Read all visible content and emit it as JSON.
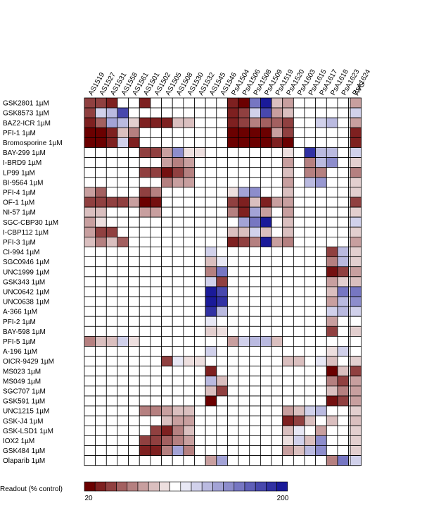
{
  "chart_data": {
    "type": "heatmap",
    "columns": [
      "AS1519",
      "AS1527",
      "AS1531",
      "AS1558",
      "AS1561",
      "AS1501",
      "AS1502",
      "AS1505",
      "AS1508",
      "AS1530",
      "AS1532",
      "AS1545",
      "AS1546",
      "PsA1504",
      "PsA1506",
      "PsA1508",
      "PsA1509",
      "PsA1519",
      "PsA1520",
      "PsA1603",
      "PsA1615",
      "PsA1617",
      "PsA1618",
      "PsA1623",
      "PsA1624"
    ],
    "summary_column": "AVG",
    "rows": [
      "GSK2801 1µM",
      "GSK8573 1µM",
      "BAZ2-ICR 1µM",
      "PFI-1 1µM",
      "Bromosporine 1µM",
      "BAY-299 1µM",
      "I-BRD9 1µM",
      "LP99 1µM",
      "BI-9564 1µM",
      "PFI-4 1µM",
      "OF-1 1µM",
      "NI-57 1µM",
      "SGC-CBP30 1µM",
      "I-CBP112 1µM",
      "PFI-3 1µM",
      "CI-994 1µM",
      "SGC0946 1µM",
      "UNC1999 1µM",
      "GSK343 1µM",
      "UNC0642 1µM",
      "UNC0638 1µM",
      "A-366 1µM",
      "PFI-2 1µM",
      "BAY-598 1µM",
      "PFI-5 1µM",
      "A-196 1µM",
      "OICR-9429 1µM",
      "MS023 1µM",
      "MS049 1µM",
      "SGC707 1µM",
      "GSK591 1µM",
      "UNC1215 1µM",
      "GSK-J4 1µM",
      "GSK-LSD1 1µM",
      "IOX2 1µM",
      "GSK484 1µM",
      "Olaparib 1µM"
    ],
    "values": [
      [
        40,
        40,
        30,
        100,
        100,
        30,
        100,
        100,
        100,
        100,
        100,
        100,
        100,
        30,
        20,
        160,
        200,
        80,
        70,
        100,
        100,
        100,
        100,
        100,
        100,
        70
      ],
      [
        40,
        120,
        130,
        180,
        100,
        100,
        100,
        100,
        100,
        100,
        100,
        100,
        100,
        30,
        40,
        120,
        180,
        70,
        80,
        100,
        100,
        100,
        100,
        100,
        100,
        120
      ],
      [
        30,
        50,
        140,
        130,
        85,
        30,
        30,
        30,
        80,
        80,
        100,
        100,
        100,
        30,
        40,
        60,
        50,
        50,
        40,
        100,
        100,
        120,
        130,
        100,
        100,
        70
      ],
      [
        20,
        20,
        30,
        80,
        60,
        100,
        100,
        100,
        100,
        100,
        100,
        100,
        100,
        20,
        20,
        20,
        20,
        70,
        40,
        100,
        100,
        100,
        100,
        100,
        100,
        30
      ],
      [
        20,
        20,
        30,
        120,
        30,
        100,
        100,
        100,
        100,
        100,
        100,
        100,
        100,
        20,
        20,
        20,
        20,
        30,
        20,
        100,
        100,
        100,
        100,
        100,
        100,
        30
      ],
      [
        100,
        100,
        100,
        100,
        100,
        40,
        40,
        70,
        150,
        90,
        90,
        100,
        100,
        100,
        100,
        100,
        100,
        100,
        90,
        100,
        190,
        130,
        130,
        100,
        100,
        120
      ],
      [
        100,
        100,
        100,
        100,
        100,
        100,
        100,
        70,
        60,
        70,
        100,
        100,
        100,
        100,
        100,
        100,
        100,
        100,
        70,
        100,
        60,
        130,
        150,
        100,
        100,
        85
      ],
      [
        100,
        100,
        100,
        100,
        100,
        40,
        40,
        25,
        40,
        60,
        100,
        100,
        100,
        100,
        100,
        100,
        100,
        100,
        80,
        100,
        60,
        60,
        100,
        100,
        100,
        60
      ],
      [
        100,
        100,
        100,
        100,
        100,
        100,
        100,
        60,
        70,
        70,
        100,
        100,
        100,
        100,
        100,
        100,
        100,
        100,
        70,
        100,
        130,
        145,
        100,
        100,
        100,
        85
      ],
      [
        70,
        50,
        100,
        100,
        100,
        40,
        60,
        100,
        100,
        100,
        100,
        100,
        100,
        90,
        140,
        150,
        100,
        100,
        80,
        100,
        100,
        100,
        100,
        100,
        100,
        85
      ],
      [
        40,
        40,
        40,
        40,
        70,
        20,
        25,
        100,
        100,
        100,
        100,
        100,
        100,
        40,
        30,
        80,
        30,
        70,
        70,
        100,
        100,
        100,
        100,
        100,
        100,
        40
      ],
      [
        80,
        80,
        100,
        100,
        100,
        70,
        70,
        100,
        100,
        100,
        100,
        100,
        100,
        60,
        30,
        140,
        70,
        100,
        70,
        100,
        100,
        100,
        100,
        100,
        100,
        85
      ],
      [
        70,
        90,
        100,
        100,
        100,
        100,
        100,
        100,
        100,
        100,
        100,
        100,
        100,
        100,
        140,
        160,
        200,
        100,
        80,
        100,
        100,
        100,
        100,
        100,
        100,
        120
      ],
      [
        70,
        40,
        40,
        100,
        100,
        100,
        100,
        100,
        100,
        100,
        100,
        100,
        100,
        80,
        80,
        120,
        80,
        100,
        80,
        100,
        100,
        100,
        100,
        100,
        100,
        85
      ],
      [
        80,
        60,
        80,
        50,
        100,
        100,
        100,
        100,
        100,
        100,
        100,
        100,
        100,
        30,
        40,
        60,
        200,
        70,
        60,
        100,
        100,
        100,
        100,
        100,
        100,
        70
      ],
      [
        100,
        100,
        100,
        100,
        100,
        100,
        100,
        100,
        100,
        100,
        100,
        120,
        100,
        100,
        100,
        100,
        100,
        100,
        100,
        100,
        100,
        100,
        40,
        130,
        100,
        85
      ],
      [
        100,
        100,
        100,
        100,
        100,
        100,
        100,
        100,
        100,
        100,
        100,
        80,
        110,
        100,
        100,
        100,
        100,
        100,
        100,
        100,
        100,
        100,
        60,
        130,
        100,
        85
      ],
      [
        100,
        100,
        100,
        100,
        100,
        100,
        100,
        100,
        100,
        100,
        100,
        60,
        160,
        100,
        100,
        100,
        100,
        100,
        100,
        100,
        100,
        100,
        25,
        40,
        100,
        70
      ],
      [
        100,
        100,
        100,
        100,
        100,
        100,
        100,
        100,
        100,
        100,
        100,
        120,
        40,
        100,
        100,
        100,
        100,
        100,
        100,
        100,
        100,
        100,
        70,
        85,
        100,
        80
      ],
      [
        100,
        100,
        100,
        100,
        100,
        100,
        100,
        100,
        100,
        100,
        100,
        200,
        180,
        100,
        100,
        100,
        100,
        100,
        100,
        100,
        100,
        100,
        80,
        160,
        100,
        160
      ],
      [
        100,
        100,
        100,
        100,
        100,
        100,
        100,
        100,
        100,
        100,
        100,
        200,
        190,
        100,
        100,
        100,
        100,
        100,
        100,
        100,
        100,
        100,
        70,
        130,
        100,
        150
      ],
      [
        100,
        100,
        100,
        100,
        100,
        100,
        100,
        100,
        100,
        100,
        100,
        190,
        130,
        100,
        100,
        100,
        100,
        100,
        100,
        100,
        100,
        100,
        120,
        130,
        100,
        120
      ],
      [
        100,
        100,
        100,
        100,
        100,
        100,
        100,
        100,
        100,
        100,
        100,
        110,
        100,
        100,
        100,
        100,
        100,
        100,
        100,
        100,
        100,
        100,
        70,
        100,
        100,
        100
      ],
      [
        100,
        100,
        100,
        100,
        100,
        100,
        100,
        100,
        100,
        100,
        100,
        85,
        90,
        100,
        100,
        100,
        100,
        100,
        100,
        100,
        100,
        100,
        40,
        100,
        100,
        85
      ],
      [
        60,
        80,
        80,
        120,
        90,
        100,
        100,
        100,
        100,
        100,
        100,
        100,
        100,
        70,
        120,
        130,
        130,
        80,
        100,
        100,
        100,
        100,
        100,
        100,
        100,
        100
      ],
      [
        100,
        100,
        100,
        100,
        100,
        100,
        100,
        100,
        100,
        100,
        100,
        120,
        100,
        100,
        100,
        100,
        100,
        100,
        100,
        100,
        100,
        100,
        90,
        120,
        100,
        100
      ],
      [
        100,
        100,
        100,
        100,
        100,
        100,
        100,
        40,
        110,
        90,
        90,
        100,
        100,
        100,
        100,
        100,
        100,
        100,
        80,
        80,
        100,
        110,
        80,
        100,
        100,
        85
      ],
      [
        100,
        100,
        100,
        100,
        100,
        100,
        100,
        100,
        100,
        100,
        100,
        30,
        100,
        100,
        100,
        100,
        100,
        100,
        100,
        100,
        100,
        100,
        20,
        80,
        100,
        40
      ],
      [
        100,
        100,
        100,
        100,
        100,
        100,
        100,
        100,
        100,
        100,
        100,
        130,
        80,
        100,
        100,
        100,
        100,
        100,
        100,
        100,
        100,
        100,
        60,
        40,
        100,
        70
      ],
      [
        100,
        100,
        100,
        100,
        100,
        100,
        100,
        100,
        100,
        100,
        100,
        80,
        40,
        100,
        100,
        100,
        100,
        100,
        100,
        100,
        100,
        100,
        80,
        60,
        100,
        70
      ],
      [
        100,
        100,
        100,
        100,
        100,
        100,
        100,
        100,
        100,
        100,
        100,
        20,
        100,
        100,
        100,
        100,
        100,
        100,
        100,
        100,
        100,
        100,
        25,
        40,
        100,
        70
      ],
      [
        100,
        100,
        100,
        100,
        100,
        60,
        60,
        70,
        80,
        80,
        100,
        100,
        100,
        100,
        100,
        100,
        100,
        100,
        70,
        80,
        120,
        130,
        100,
        100,
        100,
        85
      ],
      [
        100,
        100,
        100,
        100,
        100,
        100,
        100,
        80,
        70,
        70,
        100,
        100,
        100,
        100,
        100,
        100,
        100,
        100,
        30,
        40,
        80,
        100,
        80,
        100,
        100,
        80
      ],
      [
        100,
        100,
        100,
        100,
        100,
        100,
        40,
        30,
        60,
        80,
        100,
        100,
        100,
        100,
        100,
        100,
        100,
        100,
        80,
        110,
        100,
        70,
        100,
        100,
        100,
        85
      ],
      [
        100,
        100,
        100,
        100,
        100,
        40,
        40,
        50,
        60,
        70,
        100,
        100,
        100,
        100,
        100,
        100,
        100,
        100,
        90,
        120,
        80,
        150,
        100,
        100,
        100,
        85
      ],
      [
        100,
        100,
        100,
        100,
        100,
        30,
        30,
        60,
        140,
        60,
        100,
        100,
        100,
        100,
        100,
        100,
        100,
        100,
        70,
        80,
        130,
        150,
        100,
        100,
        100,
        85
      ],
      [
        100,
        100,
        100,
        100,
        100,
        100,
        100,
        100,
        100,
        100,
        100,
        70,
        140,
        100,
        100,
        100,
        100,
        100,
        100,
        100,
        100,
        100,
        60,
        160,
        100,
        120
      ]
    ],
    "colorbar": {
      "label": "Readout (% control)",
      "min_label": "20",
      "max_label": "200",
      "min": 20,
      "max": 200,
      "mid": 100,
      "low_color": "#6b0000",
      "mid_color": "#ffffff",
      "high_color": "#1a1a99"
    }
  }
}
